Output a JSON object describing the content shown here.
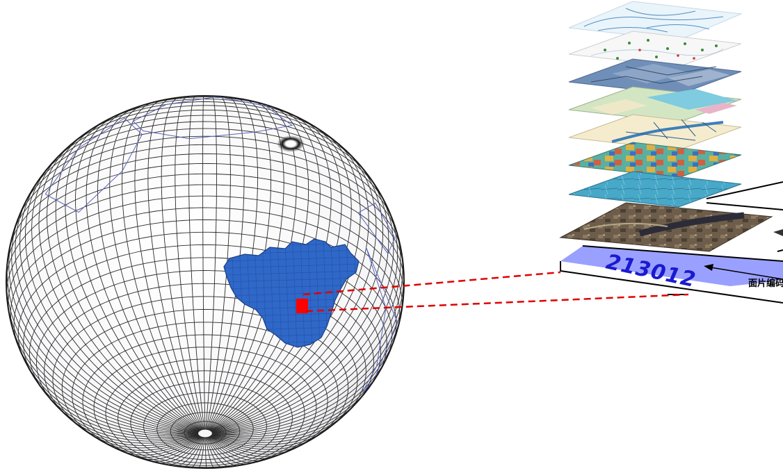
{
  "diagram": {
    "cell_code": "213012",
    "face_label": "面片编码"
  },
  "colors": {
    "grid_line": "#2a2a2a",
    "continent_line": "#5a63b8",
    "china_fill": "#2f68c8",
    "selected_cell": "#ff0000",
    "leader_line": "#e00000",
    "code_plane": "#9aa0ff",
    "code_text": "#1a1ad0",
    "layer_hydro": "#eaf4fb",
    "layer_points": "#f7f7f7",
    "layer_geology": "#6f8fb8",
    "layer_landuse": "#d3e6c4",
    "layer_vector": "#f4eccd",
    "layer_dem": "#58a8a4",
    "layer_soil": "#4aa8c8",
    "layer_imagery": "#6a5a48"
  },
  "layers": [
    {
      "name": "hydrology-layer",
      "icon": "river-network"
    },
    {
      "name": "points-layer",
      "icon": "point-features"
    },
    {
      "name": "geology-layer",
      "icon": "polygon-regions"
    },
    {
      "name": "landuse-layer",
      "icon": "landuse-patches"
    },
    {
      "name": "vector-layer",
      "icon": "road-network"
    },
    {
      "name": "dem-layer",
      "icon": "elevation-raster"
    },
    {
      "name": "soil-layer",
      "icon": "soil-raster"
    },
    {
      "name": "imagery-layer",
      "icon": "satellite-image"
    }
  ]
}
